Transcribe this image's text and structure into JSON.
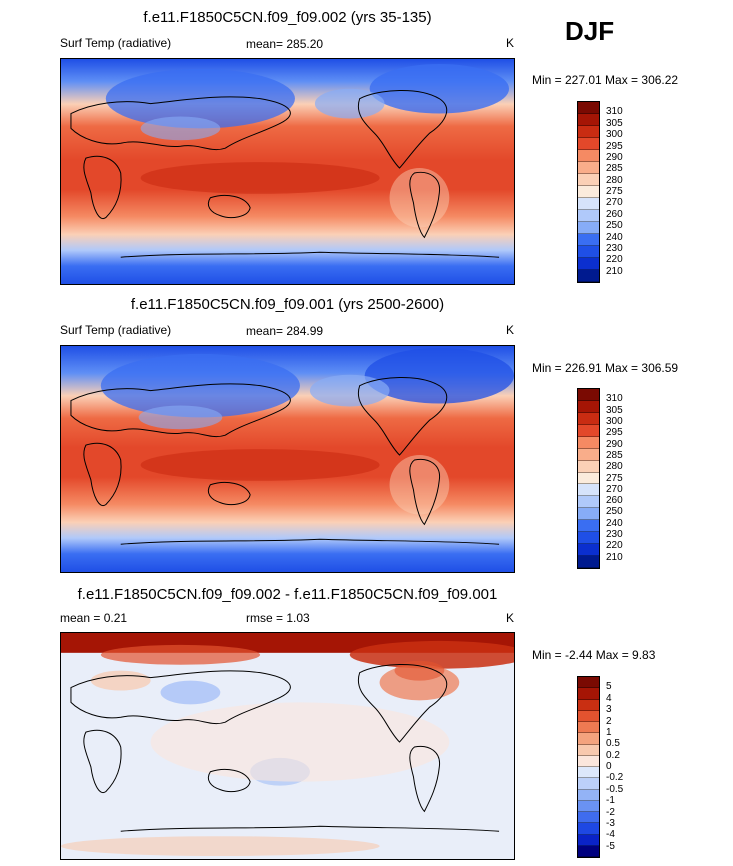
{
  "season": "DJF",
  "colors": {
    "abs": [
      "#001a8f",
      "#0b2fcf",
      "#1f4fe6",
      "#3a6ef2",
      "#5f8ff5",
      "#87acf7",
      "#b0c9fa",
      "#d6e3fb",
      "#fbebdc",
      "#fbd0b6",
      "#f9ad8a",
      "#f58a63",
      "#ee6a44",
      "#e3482a",
      "#c92c12",
      "#a51505",
      "#7a0a02"
    ],
    "diff": [
      "#00007f",
      "#0a23c7",
      "#1e48e3",
      "#3f6cee",
      "#6a92f2",
      "#93b3f6",
      "#bcd0f9",
      "#dde8fb",
      "#fbe6dc",
      "#f8c9ae",
      "#f4a37e",
      "#ee7a52",
      "#e3532f",
      "#c92f12",
      "#a51505",
      "#7a0a02"
    ]
  },
  "panels": [
    {
      "id": "panel1",
      "title": "f.e11.F1850C5CN.f09_f09.002 (yrs 35-135)",
      "left_label": "Surf Temp (radiative)",
      "stat_label": "mean= 285.20",
      "unit": "K",
      "minmax": "Min = 227.01 Max = 306.22",
      "levels": [
        "310",
        "305",
        "300",
        "295",
        "290",
        "285",
        "280",
        "275",
        "270",
        "260",
        "250",
        "240",
        "230",
        "220",
        "210"
      ]
    },
    {
      "id": "panel2",
      "title": "f.e11.F1850C5CN.f09_f09.001 (yrs 2500-2600)",
      "left_label": "Surf Temp (radiative)",
      "stat_label": "mean= 284.99",
      "unit": "K",
      "minmax": "Min = 226.91 Max = 306.59",
      "levels": [
        "310",
        "305",
        "300",
        "295",
        "290",
        "285",
        "280",
        "275",
        "270",
        "260",
        "250",
        "240",
        "230",
        "220",
        "210"
      ]
    },
    {
      "id": "panel3",
      "title": "f.e11.F1850C5CN.f09_f09.002 - f.e11.F1850C5CN.f09_f09.001",
      "left_label": "mean =   0.21",
      "stat_label": "rmse =   1.03",
      "unit": "K",
      "minmax": "Min =  -2.44 Max =   9.83",
      "levels": [
        "5",
        "4",
        "3",
        "2",
        "1",
        "0.5",
        "0.2",
        "0",
        "-0.2",
        "-0.5",
        "-1",
        "-2",
        "-3",
        "-4",
        "-5"
      ]
    }
  ]
}
